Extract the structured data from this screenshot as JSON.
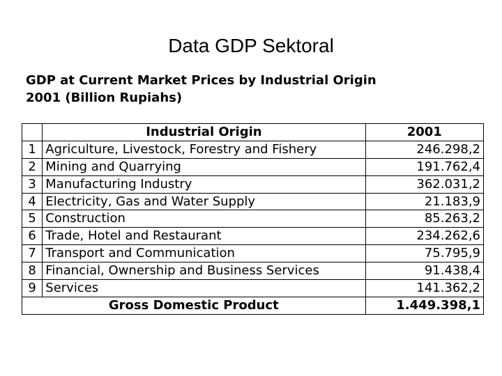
{
  "slide": {
    "title": "Data GDP Sektoral"
  },
  "table_caption": {
    "line1": "GDP at Current Market Prices by Industrial Origin",
    "line2": "2001 (Billion Rupiahs)"
  },
  "table": {
    "headers": {
      "number": "",
      "origin": "Industrial Origin",
      "year": "2001"
    },
    "rows": [
      {
        "no": "1",
        "origin": "Agriculture, Livestock, Forestry and Fishery",
        "value": "246.298,2"
      },
      {
        "no": "2",
        "origin": "Mining and Quarrying",
        "value": "191.762,4"
      },
      {
        "no": "3",
        "origin": "Manufacturing Industry",
        "value": "362.031,2"
      },
      {
        "no": "4",
        "origin": "Electricity, Gas and Water Supply",
        "value": "21.183,9"
      },
      {
        "no": "5",
        "origin": "Construction",
        "value": "85.263,2"
      },
      {
        "no": "6",
        "origin": "Trade, Hotel and Restaurant",
        "value": "234.262,6"
      },
      {
        "no": "7",
        "origin": "Transport and Communication",
        "value": "75.795,9"
      },
      {
        "no": "8",
        "origin": "Financial, Ownership and Business Services",
        "value": "91.438,4"
      },
      {
        "no": "9",
        "origin": "Services",
        "value": "141.362,2"
      }
    ],
    "total": {
      "label": "Gross Domestic Product",
      "value": "1.449.398,1"
    }
  }
}
